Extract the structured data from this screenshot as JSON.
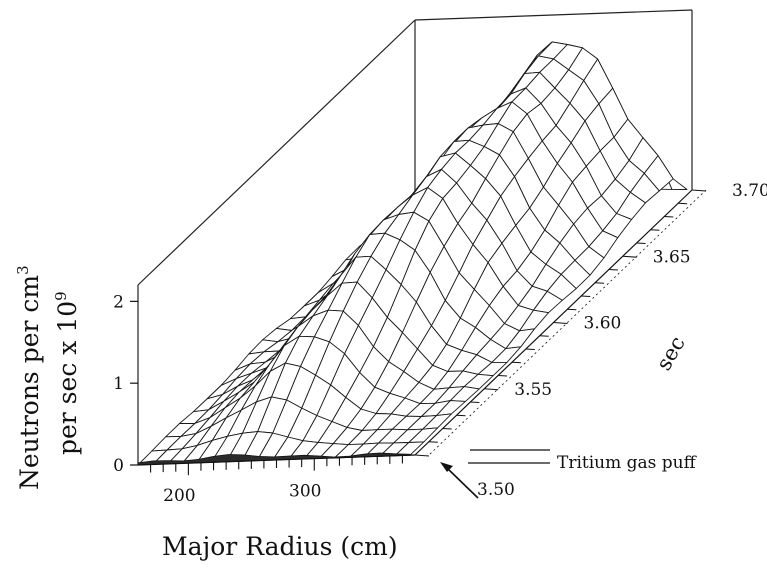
{
  "chart_data": {
    "type": "surface",
    "z_axis": {
      "label_line1": "Neutrons per cm",
      "label_line1_sup": "3",
      "label_line2": "per sec x 10",
      "label_line2_sup": "9",
      "ticks": [
        "0",
        "1",
        "2"
      ],
      "range": [
        0,
        2.2
      ]
    },
    "x_axis": {
      "label": "Major Radius (cm)",
      "ticks": [
        "200",
        "300"
      ],
      "range": [
        160,
        380
      ]
    },
    "t_axis": {
      "label": "sec",
      "ticks": [
        "3.50",
        "3.55",
        "3.60",
        "3.65",
        "3.70"
      ],
      "range": [
        3.5,
        3.7
      ]
    },
    "annotation": "Tritium gas  puff",
    "radius_grid": [
      160,
      172,
      184,
      196,
      208,
      220,
      232,
      244,
      256,
      268,
      280,
      292,
      304,
      316,
      328,
      340,
      352,
      364,
      376
    ],
    "time_grid": [
      3.5,
      3.51,
      3.52,
      3.53,
      3.54,
      3.55,
      3.56,
      3.57,
      3.58,
      3.59,
      3.6,
      3.61,
      3.62,
      3.63,
      3.64,
      3.65,
      3.66,
      3.67,
      3.68,
      3.69,
      3.7
    ],
    "surface_params": {
      "peak_max": [
        0.05,
        0.2,
        0.45,
        0.7,
        0.9,
        1.05,
        1.2,
        1.35,
        1.5,
        1.6,
        1.68,
        1.72,
        1.78,
        1.82,
        1.88,
        1.92,
        1.9,
        1.95,
        2.0,
        2.05,
        0.06
      ],
      "peak_center_cm": [
        236,
        240,
        244,
        248,
        252,
        256,
        260,
        264,
        268,
        272,
        275,
        277,
        279,
        281,
        283,
        285,
        287,
        288,
        289,
        290,
        290
      ],
      "peak_width_cm": [
        40,
        42,
        44,
        46,
        48,
        50,
        52,
        54,
        56,
        58,
        60,
        61,
        62,
        63,
        64,
        65,
        65,
        66,
        66,
        67,
        67
      ]
    }
  }
}
